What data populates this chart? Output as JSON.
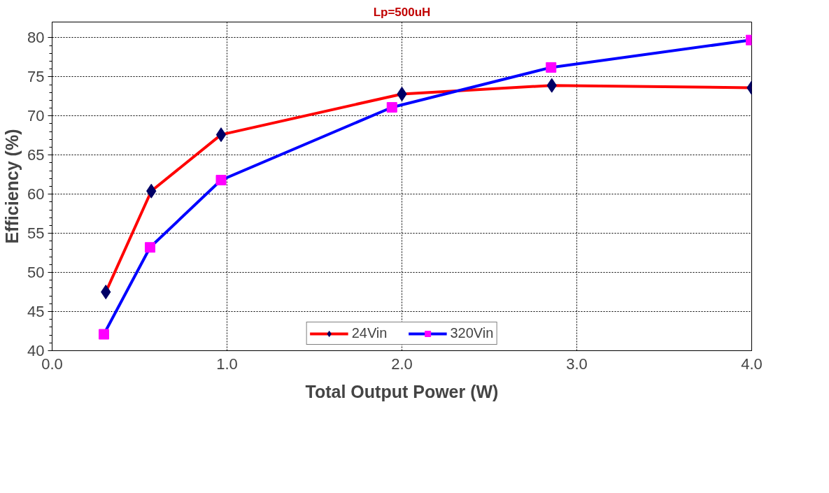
{
  "chart_data": {
    "type": "line",
    "title": "Lp=500uH",
    "xlabel": "Total Output Power (W)",
    "ylabel": "Efficiency (%)",
    "xlim": [
      0,
      4
    ],
    "xticks": [
      {
        "value": 0,
        "label": "0.0"
      },
      {
        "value": 1,
        "label": "1.0"
      },
      {
        "value": 2,
        "label": "2.0"
      },
      {
        "value": 3,
        "label": "3.0"
      },
      {
        "value": 4,
        "label": "4.0"
      }
    ],
    "ylim": [
      40,
      82
    ],
    "yticks": [
      40,
      45,
      50,
      55,
      60,
      65,
      70,
      75,
      80
    ],
    "grid": true,
    "legend": "bottom",
    "line_style": "solid",
    "series": [
      {
        "name": "24Vin",
        "color": "#ff0000",
        "marker": "diamond",
        "x": [
          0.307,
          0.567,
          0.966,
          2.0,
          2.857,
          4.0
        ],
        "values": [
          47.5,
          60.4,
          67.6,
          72.8,
          73.9,
          73.6
        ],
        "colors": [
          "#000066",
          "#000066",
          "#000066",
          "#000066",
          "#000066",
          "#000066"
        ]
      },
      {
        "name": "320Vin",
        "color": "#0000ff",
        "marker": "square",
        "x": [
          0.296,
          0.56,
          0.966,
          1.943,
          2.853,
          3.996
        ],
        "values": [
          42.1,
          53.2,
          61.8,
          71.1,
          76.2,
          79.7
        ],
        "colors": [
          "#ff00ff",
          "#ff00ff",
          "#ff00ff",
          "#ff00ff",
          "#ff00ff",
          "#ff00ff"
        ]
      }
    ]
  }
}
